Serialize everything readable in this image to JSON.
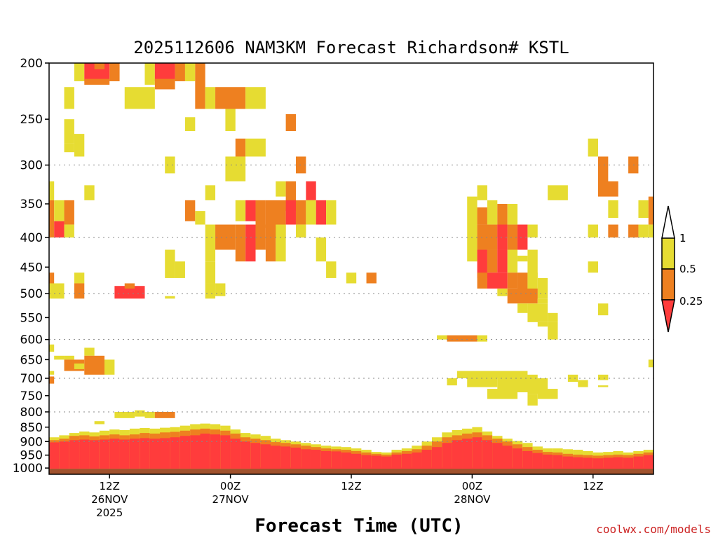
{
  "chart_data": {
    "type": "heatmap",
    "title": "2025112606 NAM3KM Forecast Richardson# KSTL",
    "xlabel": "Forecast Time (UTC)",
    "credit": "coolwx.com/models",
    "y_axis": {
      "scale": "log-pressure",
      "range_hpa": [
        1025,
        200
      ],
      "ticks": [
        200,
        250,
        300,
        350,
        400,
        450,
        500,
        550,
        600,
        650,
        700,
        750,
        800,
        850,
        900,
        950,
        1000
      ],
      "tick_labels": [
        "200",
        "250",
        "300",
        "350",
        "400",
        "450",
        "500",
        "550",
        "600",
        "650",
        "700",
        "750",
        "800",
        "850",
        "900",
        "950",
        "1000"
      ],
      "gridlines": [
        300,
        400,
        500,
        600,
        700,
        800,
        900
      ]
    },
    "x_axis": {
      "unit": "hours since 2025-11-26 06Z",
      "range": [
        0,
        60
      ],
      "ticks": [
        {
          "hour": 6,
          "line1": "12Z",
          "line2": "26NOV",
          "line3": "2025"
        },
        {
          "hour": 18,
          "line1": "00Z",
          "line2": "27NOV",
          "line3": ""
        },
        {
          "hour": 30,
          "line1": "12Z",
          "line2": "",
          "line3": ""
        },
        {
          "hour": 42,
          "line1": "00Z",
          "line2": "28NOV",
          "line3": ""
        },
        {
          "hour": 54,
          "line1": "12Z",
          "line2": "",
          "line3": ""
        }
      ]
    },
    "colorbar": {
      "levels": [
        {
          "label": "1",
          "color": "#ffffff"
        },
        {
          "label": "0.5",
          "color": "#e6dc32"
        },
        {
          "label": "0.25",
          "color": "#ee8020"
        },
        {
          "label": "",
          "color": "#ff3c3c"
        }
      ],
      "classes": [
        {
          "range": ">1",
          "color": "#ffffff"
        },
        {
          "range": "0.5-1",
          "color": "#e6dc32"
        },
        {
          "range": "0.25-0.5",
          "color": "#ee8020"
        },
        {
          "range": "<0.25",
          "color": "#ff3c3c"
        }
      ]
    },
    "ground_color": "#a0522d",
    "ground_top_hpa": 1003,
    "cell_width_hours": 1,
    "patches_note": "Cells are [hour_start, hour_end, p_top_hPa, p_bottom_hPa, class] where class 1=0.5-1 (yellow), 2=0.25-0.5 (orange), 3=<0.25 (red)",
    "patches": [
      [
        2.5,
        3.5,
        200,
        215,
        1
      ],
      [
        3.5,
        6,
        200,
        215,
        3
      ],
      [
        3.5,
        6,
        213,
        218,
        2
      ],
      [
        4.5,
        5.5,
        200,
        205,
        2
      ],
      [
        6,
        7,
        200,
        215,
        2
      ],
      [
        9.5,
        10.5,
        200,
        218,
        1
      ],
      [
        10.5,
        12.5,
        200,
        215,
        3
      ],
      [
        10.5,
        12.5,
        213,
        222,
        2
      ],
      [
        12.5,
        13.5,
        200,
        215,
        2
      ],
      [
        13.5,
        14.5,
        200,
        215,
        1
      ],
      [
        14.5,
        15.5,
        200,
        240,
        2
      ],
      [
        1.5,
        2.5,
        220,
        240,
        1
      ],
      [
        7.5,
        10.5,
        220,
        240,
        1
      ],
      [
        15.5,
        16.5,
        220,
        240,
        1
      ],
      [
        16.5,
        19.5,
        220,
        240,
        2
      ],
      [
        19.5,
        21.5,
        220,
        240,
        1
      ],
      [
        17.5,
        18.5,
        240,
        262,
        1
      ],
      [
        13.5,
        14.5,
        248,
        262,
        1
      ],
      [
        1.5,
        2.5,
        250,
        275,
        1
      ],
      [
        2.5,
        3.5,
        265,
        290,
        1
      ],
      [
        1.5,
        2.5,
        275,
        285,
        1
      ],
      [
        23.5,
        24.5,
        245,
        262,
        2
      ],
      [
        18.5,
        19.5,
        270,
        290,
        2
      ],
      [
        19.5,
        21.5,
        270,
        290,
        1
      ],
      [
        11.5,
        12.5,
        290,
        310,
        1
      ],
      [
        17.5,
        19.5,
        290,
        320,
        1
      ],
      [
        24.5,
        25.5,
        290,
        310,
        2
      ],
      [
        53.5,
        54.5,
        270,
        290,
        1
      ],
      [
        54.5,
        55.5,
        290,
        325,
        2
      ],
      [
        54.5,
        56.5,
        320,
        340,
        2
      ],
      [
        57.5,
        58.5,
        290,
        310,
        2
      ],
      [
        0,
        0.5,
        320,
        345,
        1
      ],
      [
        3.5,
        4.5,
        325,
        345,
        1
      ],
      [
        15.5,
        16.5,
        325,
        345,
        1
      ],
      [
        22.5,
        23.5,
        320,
        340,
        1
      ],
      [
        23.5,
        24.5,
        320,
        360,
        2
      ],
      [
        25.5,
        26.5,
        320,
        345,
        3
      ],
      [
        42.5,
        43.5,
        325,
        345,
        1
      ],
      [
        49.5,
        51.5,
        325,
        345,
        1
      ],
      [
        60,
        60.5,
        325,
        345,
        1
      ],
      [
        0,
        0.5,
        345,
        400,
        2
      ],
      [
        0.5,
        1.5,
        345,
        375,
        1
      ],
      [
        0.5,
        1.5,
        375,
        400,
        3
      ],
      [
        1.5,
        2.5,
        345,
        380,
        2
      ],
      [
        1.5,
        2.5,
        380,
        400,
        1
      ],
      [
        13.5,
        14.5,
        345,
        375,
        2
      ],
      [
        14.5,
        15.5,
        360,
        380,
        1
      ],
      [
        18.5,
        19.5,
        345,
        375,
        1
      ],
      [
        19.5,
        20.5,
        345,
        375,
        3
      ],
      [
        20.5,
        21.5,
        345,
        385,
        2
      ],
      [
        21.5,
        23.5,
        345,
        400,
        2
      ],
      [
        23.5,
        24.5,
        345,
        380,
        3
      ],
      [
        24.5,
        25.5,
        345,
        380,
        2
      ],
      [
        25.5,
        26.5,
        345,
        380,
        1
      ],
      [
        26.5,
        27.5,
        345,
        380,
        3
      ],
      [
        27.5,
        28.5,
        345,
        380,
        1
      ],
      [
        41.5,
        42.5,
        340,
        440,
        1
      ],
      [
        42.5,
        43.5,
        355,
        380,
        2
      ],
      [
        43.5,
        44.5,
        345,
        380,
        1
      ],
      [
        44.5,
        45.5,
        350,
        400,
        2
      ],
      [
        45.5,
        46.5,
        350,
        380,
        1
      ],
      [
        55.5,
        56.5,
        345,
        370,
        1
      ],
      [
        58.5,
        59.5,
        345,
        370,
        1
      ],
      [
        59.5,
        60.5,
        340,
        380,
        2
      ],
      [
        15.5,
        16.5,
        380,
        440,
        1
      ],
      [
        16.5,
        18.5,
        380,
        420,
        2
      ],
      [
        18.5,
        19.5,
        380,
        440,
        2
      ],
      [
        19.5,
        20.5,
        380,
        440,
        3
      ],
      [
        20.5,
        21.5,
        380,
        420,
        2
      ],
      [
        21.5,
        22.5,
        400,
        440,
        2
      ],
      [
        22.5,
        23.5,
        380,
        440,
        1
      ],
      [
        24.5,
        25.5,
        380,
        400,
        1
      ],
      [
        26.5,
        27.5,
        400,
        440,
        1
      ],
      [
        53.5,
        54.5,
        380,
        400,
        1
      ],
      [
        55.5,
        56.5,
        380,
        400,
        2
      ],
      [
        57.5,
        58.5,
        380,
        400,
        2
      ],
      [
        58.5,
        59.5,
        380,
        400,
        1
      ],
      [
        59.5,
        60.5,
        380,
        400,
        1
      ],
      [
        42.5,
        44.5,
        380,
        420,
        2
      ],
      [
        44.5,
        45.5,
        380,
        420,
        3
      ],
      [
        45.5,
        46.5,
        380,
        420,
        2
      ],
      [
        46.5,
        47.5,
        380,
        420,
        3
      ],
      [
        47.5,
        48.5,
        380,
        400,
        1
      ],
      [
        42.5,
        43.5,
        420,
        470,
        3
      ],
      [
        43.5,
        44.5,
        420,
        460,
        2
      ],
      [
        44.5,
        45.5,
        420,
        460,
        3
      ],
      [
        45.5,
        46.5,
        420,
        460,
        1
      ],
      [
        46.5,
        47.5,
        430,
        440,
        1
      ],
      [
        47.5,
        48.5,
        420,
        470,
        1
      ],
      [
        11.5,
        12.5,
        420,
        470,
        1
      ],
      [
        12.5,
        13.5,
        440,
        470,
        1
      ],
      [
        15.5,
        16.5,
        440,
        480,
        1
      ],
      [
        27.5,
        28.5,
        440,
        470,
        1
      ],
      [
        53.5,
        54.5,
        440,
        460,
        1
      ],
      [
        42.5,
        43.5,
        460,
        490,
        2
      ],
      [
        43.5,
        45.5,
        460,
        490,
        3
      ],
      [
        45.5,
        46.5,
        460,
        490,
        2
      ],
      [
        46.5,
        47.5,
        460,
        500,
        2
      ],
      [
        47.5,
        48.5,
        460,
        510,
        1
      ],
      [
        48.5,
        49.5,
        470,
        510,
        1
      ],
      [
        29.5,
        30.5,
        460,
        480,
        1
      ],
      [
        31.5,
        32.5,
        460,
        480,
        2
      ],
      [
        0,
        0.5,
        460,
        480,
        2
      ],
      [
        2.5,
        3.5,
        460,
        480,
        1
      ],
      [
        0,
        1.5,
        480,
        510,
        1
      ],
      [
        2.5,
        3.5,
        480,
        510,
        2
      ],
      [
        6.5,
        9.5,
        485,
        510,
        3
      ],
      [
        7.5,
        8.5,
        480,
        490,
        2
      ],
      [
        11.5,
        12.5,
        505,
        510,
        1
      ],
      [
        15.5,
        16.5,
        480,
        510,
        1
      ],
      [
        16.5,
        17.5,
        480,
        505,
        1
      ],
      [
        44.5,
        45.5,
        490,
        505,
        1
      ],
      [
        45.5,
        48.5,
        490,
        520,
        2
      ],
      [
        48.5,
        49.5,
        510,
        520,
        1
      ],
      [
        47.5,
        49.5,
        520,
        560,
        1
      ],
      [
        46.5,
        47.5,
        520,
        540,
        1
      ],
      [
        49.5,
        50.5,
        540,
        560,
        1
      ],
      [
        48.5,
        49.5,
        560,
        570,
        1
      ],
      [
        54.5,
        55.5,
        520,
        545,
        1
      ],
      [
        49.5,
        50.5,
        560,
        600,
        1
      ],
      [
        38.5,
        39.5,
        590,
        600,
        1
      ],
      [
        39.5,
        42.5,
        590,
        605,
        2
      ],
      [
        42.5,
        43.5,
        590,
        605,
        1
      ],
      [
        0,
        0.5,
        612,
        630,
        1
      ],
      [
        0.5,
        1.5,
        640,
        650,
        1
      ],
      [
        1.5,
        2.5,
        640,
        650,
        1
      ],
      [
        3.5,
        4.5,
        620,
        640,
        1
      ],
      [
        1.5,
        3.5,
        650,
        680,
        2
      ],
      [
        3.5,
        5.5,
        640,
        690,
        2
      ],
      [
        2.5,
        3.5,
        660,
        675,
        1
      ],
      [
        5.5,
        6.5,
        650,
        690,
        1
      ],
      [
        0,
        0.5,
        695,
        715,
        2
      ],
      [
        0,
        0.5,
        680,
        690,
        1
      ],
      [
        39.5,
        40.5,
        700,
        720,
        1
      ],
      [
        40.5,
        47.5,
        680,
        700,
        1
      ],
      [
        41.5,
        44.5,
        695,
        725,
        1
      ],
      [
        44.5,
        48.5,
        690,
        740,
        1
      ],
      [
        47.5,
        49.5,
        700,
        745,
        1
      ],
      [
        48.5,
        50.5,
        730,
        760,
        1
      ],
      [
        47.5,
        48.5,
        745,
        780,
        1
      ],
      [
        43.5,
        46.5,
        730,
        760,
        1
      ],
      [
        51.5,
        52.5,
        690,
        710,
        1
      ],
      [
        52.5,
        53.5,
        705,
        725,
        1
      ],
      [
        54.5,
        55.5,
        690,
        705,
        1
      ],
      [
        54.5,
        55.5,
        720,
        725,
        1
      ],
      [
        59.5,
        60.5,
        650,
        670,
        1
      ],
      [
        6.5,
        8.5,
        800,
        820,
        1
      ],
      [
        8.5,
        9.5,
        795,
        815,
        1
      ],
      [
        9.5,
        10.5,
        800,
        820,
        1
      ],
      [
        10.5,
        12.5,
        800,
        820,
        2
      ],
      [
        4.5,
        5.5,
        830,
        840,
        1
      ],
      [
        20,
        60,
        998,
        1003,
        3
      ]
    ],
    "surface_band_note": "Columns [hour_start, hour_end, top_red_hPa, top_orange_hPa, top_yellow_hPa]",
    "surface_band": [
      [
        0,
        1,
        903,
        895,
        885
      ],
      [
        1,
        2,
        900,
        890,
        878
      ],
      [
        2,
        3,
        895,
        880,
        870
      ],
      [
        3,
        4,
        893,
        878,
        865
      ],
      [
        4,
        5,
        895,
        882,
        868
      ],
      [
        5,
        6,
        893,
        878,
        862
      ],
      [
        6,
        7,
        890,
        875,
        858
      ],
      [
        7,
        8,
        893,
        878,
        860
      ],
      [
        8,
        9,
        890,
        875,
        855
      ],
      [
        9,
        10,
        888,
        870,
        853
      ],
      [
        10,
        11,
        890,
        872,
        855
      ],
      [
        11,
        12,
        888,
        868,
        852
      ],
      [
        12,
        13,
        885,
        866,
        850
      ],
      [
        13,
        14,
        880,
        862,
        845
      ],
      [
        14,
        15,
        878,
        858,
        840
      ],
      [
        15,
        16,
        872,
        855,
        838
      ],
      [
        16,
        17,
        875,
        858,
        840
      ],
      [
        17,
        18,
        878,
        862,
        845
      ],
      [
        18,
        19,
        890,
        872,
        858
      ],
      [
        19,
        20,
        900,
        885,
        870
      ],
      [
        20,
        21,
        905,
        890,
        875
      ],
      [
        21,
        22,
        910,
        895,
        880
      ],
      [
        22,
        23,
        915,
        902,
        890
      ],
      [
        23,
        24,
        918,
        905,
        895
      ],
      [
        24,
        25,
        922,
        910,
        900
      ],
      [
        25,
        26,
        928,
        915,
        905
      ],
      [
        26,
        27,
        930,
        920,
        910
      ],
      [
        27,
        28,
        935,
        925,
        915
      ],
      [
        28,
        29,
        936,
        928,
        918
      ],
      [
        29,
        30,
        940,
        930,
        920
      ],
      [
        30,
        31,
        945,
        935,
        925
      ],
      [
        31,
        32,
        950,
        940,
        930
      ],
      [
        32,
        33,
        952,
        945,
        938
      ],
      [
        33,
        34,
        955,
        948,
        940
      ],
      [
        34,
        35,
        948,
        940,
        930
      ],
      [
        35,
        36,
        945,
        935,
        925
      ],
      [
        36,
        37,
        940,
        928,
        915
      ],
      [
        37,
        38,
        930,
        915,
        900
      ],
      [
        38,
        39,
        920,
        900,
        885
      ],
      [
        39,
        40,
        905,
        885,
        868
      ],
      [
        40,
        41,
        895,
        878,
        860
      ],
      [
        41,
        42,
        890,
        872,
        855
      ],
      [
        42,
        43,
        885,
        868,
        850
      ],
      [
        43,
        44,
        895,
        878,
        865
      ],
      [
        44,
        45,
        905,
        890,
        880
      ],
      [
        45,
        46,
        915,
        900,
        890
      ],
      [
        46,
        47,
        925,
        910,
        898
      ],
      [
        47,
        48,
        935,
        920,
        905
      ],
      [
        48,
        49,
        942,
        930,
        918
      ],
      [
        49,
        50,
        948,
        938,
        925
      ],
      [
        50,
        51,
        950,
        940,
        925
      ],
      [
        51,
        52,
        955,
        945,
        928
      ],
      [
        52,
        53,
        958,
        948,
        930
      ],
      [
        53,
        54,
        960,
        950,
        935
      ],
      [
        54,
        55,
        962,
        952,
        940
      ],
      [
        55,
        56,
        960,
        950,
        938
      ],
      [
        56,
        57,
        958,
        948,
        935
      ],
      [
        57,
        58,
        960,
        950,
        940
      ],
      [
        58,
        59,
        955,
        945,
        935
      ],
      [
        59,
        60,
        950,
        940,
        930
      ],
      [
        60,
        61,
        948,
        938,
        928
      ]
    ]
  }
}
